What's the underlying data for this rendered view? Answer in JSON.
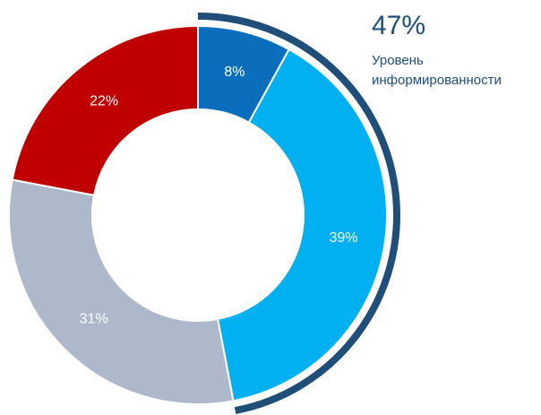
{
  "chart_data": {
    "type": "donut",
    "categories": [
      null,
      null,
      null,
      null
    ],
    "values": [
      8,
      39,
      31,
      22
    ],
    "value_labels": [
      "8%",
      "39%",
      "31%",
      "22%"
    ],
    "colors": [
      "#0a6ebd",
      "#00b0f0",
      "#adb9ca",
      "#c00000"
    ],
    "highlight": {
      "value": 47,
      "label": "47%",
      "text": [
        "Уровень",
        "информированности"
      ],
      "color": "#1f4e79"
    }
  }
}
